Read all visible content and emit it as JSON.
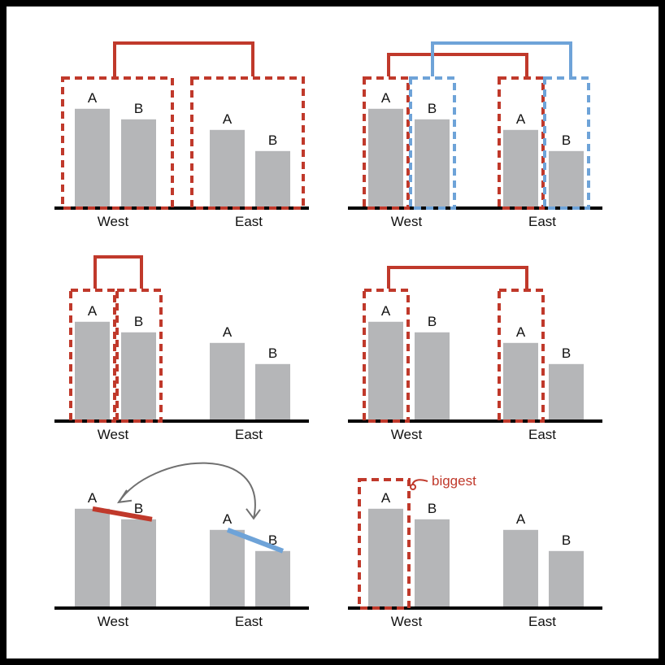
{
  "colors": {
    "bar": "#b5b6b8",
    "axis": "#000000",
    "red": "#c0392b",
    "blue": "#6ea3d8",
    "arrow": "#707070",
    "background": "#ffffff",
    "border": "#000000"
  },
  "chart_data": [
    {
      "type": "bar",
      "panel": "group-vs-group",
      "categories": [
        "West",
        "East"
      ],
      "series": [
        {
          "name": "A",
          "values": [
            4.7,
            3.7
          ]
        },
        {
          "name": "B",
          "values": [
            4.2,
            2.7
          ]
        }
      ],
      "annotation": "Bracket links the whole West group to the whole East group"
    },
    {
      "type": "bar",
      "panel": "same-series-across-groups",
      "categories": [
        "West",
        "East"
      ],
      "series": [
        {
          "name": "A",
          "values": [
            4.7,
            3.7
          ]
        },
        {
          "name": "B",
          "values": [
            4.2,
            2.7
          ]
        }
      ],
      "annotation": "Red bracket links A bars across groups; blue bracket links B bars across groups"
    },
    {
      "type": "bar",
      "panel": "within-group",
      "categories": [
        "West",
        "East"
      ],
      "series": [
        {
          "name": "A",
          "values": [
            4.7,
            3.7
          ]
        },
        {
          "name": "B",
          "values": [
            4.2,
            2.7
          ]
        }
      ],
      "annotation": "Bracket compares West A with West B"
    },
    {
      "type": "bar",
      "panel": "one-series-across-groups",
      "categories": [
        "West",
        "East"
      ],
      "series": [
        {
          "name": "A",
          "values": [
            4.7,
            3.7
          ]
        },
        {
          "name": "B",
          "values": [
            4.2,
            2.7
          ]
        }
      ],
      "annotation": "Bracket compares West A with East A"
    },
    {
      "type": "bar",
      "panel": "slope-comparison",
      "categories": [
        "West",
        "East"
      ],
      "series": [
        {
          "name": "A",
          "values": [
            4.7,
            3.7
          ]
        },
        {
          "name": "B",
          "values": [
            4.2,
            2.7
          ]
        }
      ],
      "annotation": "Slope lines from A to B in each group (red West, blue East) joined by a curved double arrow"
    },
    {
      "type": "bar",
      "panel": "single-max",
      "categories": [
        "West",
        "East"
      ],
      "series": [
        {
          "name": "A",
          "values": [
            4.7,
            3.7
          ]
        },
        {
          "name": "B",
          "values": [
            4.2,
            2.7
          ]
        }
      ],
      "annotation": "West A highlighted as the largest value",
      "callout": "biggest"
    }
  ]
}
